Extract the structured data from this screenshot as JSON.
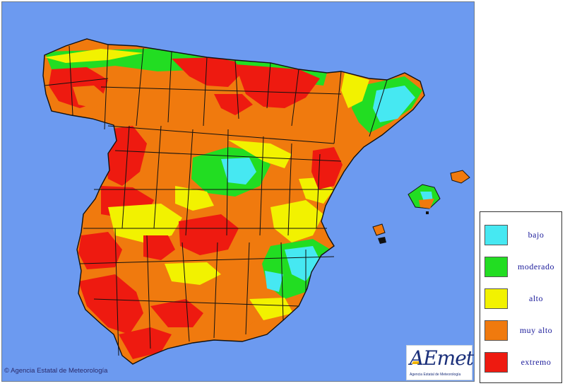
{
  "legend": {
    "items": [
      {
        "label": "bajo",
        "color": "#46e8f2"
      },
      {
        "label": "moderado",
        "color": "#22dd22"
      },
      {
        "label": "alto",
        "color": "#f2f200"
      },
      {
        "label": "muy alto",
        "color": "#f07a0e"
      },
      {
        "label": "extremo",
        "color": "#ee1a10"
      }
    ]
  },
  "colors": {
    "sea": "#6c9af0",
    "land_base": "#f07a0e",
    "border": "#111111",
    "low": "#46e8f2",
    "moderate": "#22dd22",
    "high": "#f2f200",
    "very_high": "#f07a0e",
    "extreme": "#ee1a10"
  },
  "copyright": "© Agencia Estatal de Meteorología",
  "logo": {
    "text": "AEmet",
    "subtext": "Agencia Estatal de Meteorología",
    "icon": "aemet-logo-icon"
  }
}
